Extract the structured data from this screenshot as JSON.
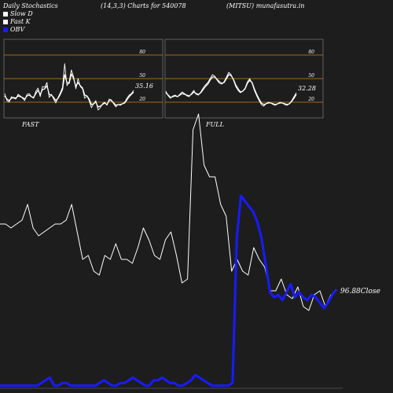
{
  "header": {
    "left": "Daily Stochastics",
    "middle": "(14,3,3) Charts for 540078",
    "right": "(MITSU) munafasutra.in"
  },
  "legend": [
    {
      "label": "Slow  D",
      "color": "#ffffff"
    },
    {
      "label": "Fast K",
      "color": "#ffffff"
    },
    {
      "label": "OBV",
      "color": "#1a1aff"
    }
  ],
  "chart_data": [
    {
      "type": "line",
      "title": "FAST",
      "ylim": [
        0,
        100
      ],
      "levels": [
        80,
        50,
        20
      ],
      "level_color": "#c8861e",
      "last_label": "35.16",
      "series": [
        {
          "values": [
            31,
            22,
            20,
            27,
            25,
            24,
            30,
            28,
            25,
            22,
            30,
            31,
            27,
            25,
            34,
            38,
            27,
            40,
            39,
            45,
            26,
            30,
            24,
            19,
            26,
            32,
            39,
            69,
            41,
            46,
            61,
            52,
            37,
            50,
            40,
            37,
            25,
            28,
            22,
            13,
            18,
            22,
            10,
            13,
            18,
            20,
            16,
            24,
            23,
            18,
            14,
            17,
            16,
            18,
            20,
            25,
            29,
            31,
            35
          ]
        },
        {
          "values": [
            28,
            24,
            22,
            25,
            26,
            25,
            28,
            27,
            26,
            24,
            28,
            29,
            27,
            26,
            31,
            35,
            30,
            36,
            37,
            41,
            30,
            29,
            26,
            22,
            25,
            30,
            36,
            55,
            45,
            44,
            56,
            50,
            40,
            45,
            41,
            38,
            29,
            28,
            24,
            17,
            18,
            20,
            14,
            15,
            17,
            19,
            17,
            22,
            22,
            19,
            16,
            17,
            17,
            18,
            19,
            23,
            27,
            30,
            33
          ]
        }
      ]
    },
    {
      "type": "line",
      "title": "FULL",
      "ylim": [
        0,
        100
      ],
      "levels": [
        80,
        50,
        20
      ],
      "level_color": "#c8861e",
      "last_label": "32.28",
      "series": [
        {
          "values": [
            34,
            28,
            25,
            28,
            29,
            27,
            30,
            33,
            31,
            28,
            27,
            31,
            35,
            30,
            29,
            33,
            38,
            42,
            45,
            50,
            55,
            53,
            48,
            44,
            43,
            46,
            52,
            58,
            55,
            48,
            40,
            35,
            32,
            34,
            38,
            46,
            50,
            44,
            35,
            28,
            22,
            17,
            15,
            18,
            20,
            19,
            17,
            16,
            18,
            20,
            19,
            17,
            16,
            18,
            22,
            27,
            32
          ]
        },
        {
          "values": [
            32,
            29,
            26,
            27,
            28,
            27,
            29,
            31,
            30,
            29,
            28,
            30,
            33,
            31,
            30,
            32,
            36,
            40,
            43,
            48,
            52,
            52,
            49,
            46,
            44,
            45,
            50,
            55,
            54,
            49,
            42,
            37,
            33,
            34,
            37,
            44,
            48,
            45,
            37,
            30,
            24,
            19,
            17,
            18,
            19,
            19,
            18,
            17,
            18,
            19,
            19,
            18,
            17,
            18,
            21,
            25,
            30
          ]
        }
      ]
    },
    {
      "type": "line",
      "price_label": "96.88",
      "price_label_suffix": "Close",
      "price_color": "#ffffff",
      "obv_color": "#1a1aff",
      "series": [
        {
          "values": [
            43,
            43,
            42,
            43,
            44,
            48,
            42,
            40,
            41,
            42,
            43,
            43,
            44,
            48,
            41,
            34,
            35,
            31,
            30,
            35,
            34,
            38,
            34,
            34,
            33,
            37,
            42,
            39,
            35,
            34,
            39,
            41,
            35,
            28,
            29,
            67,
            71,
            58,
            55,
            55,
            48,
            45,
            31,
            34,
            31,
            30,
            37,
            34,
            32,
            26,
            26,
            29,
            25,
            24,
            27,
            22,
            21,
            25,
            26,
            22,
            25,
            26
          ]
        },
        {
          "values": [
            1,
            1,
            1,
            1,
            1,
            1,
            1,
            1,
            1,
            1,
            2,
            3,
            4,
            1,
            1,
            2,
            2,
            1,
            1,
            1,
            1,
            1,
            1,
            1,
            2,
            3,
            2,
            1,
            1,
            2,
            2,
            3,
            4,
            3,
            2,
            1,
            1,
            3,
            3,
            4,
            3,
            2,
            2,
            1,
            1,
            2,
            3,
            5,
            4,
            3,
            2,
            1,
            1,
            1,
            1,
            1,
            2,
            56,
            72,
            70,
            68,
            66,
            62,
            56,
            46,
            36,
            34,
            35,
            33,
            36,
            39,
            34,
            36,
            34,
            33,
            35,
            34,
            32,
            30,
            32,
            35,
            37
          ]
        }
      ]
    }
  ]
}
